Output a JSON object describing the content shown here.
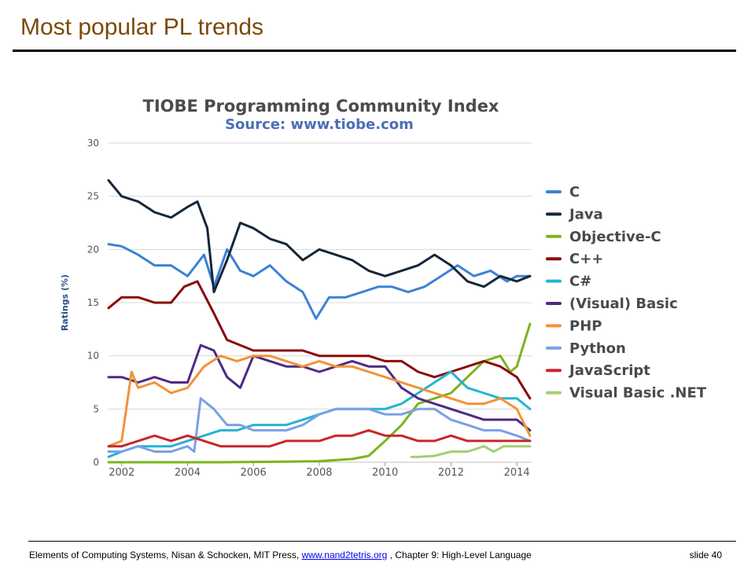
{
  "slide": {
    "title": "Most popular PL trends",
    "footer_prefix": "Elements of Computing Systems, Nisan & Schocken, MIT Press,",
    "footer_link": "www.nand2tetris.org",
    "footer_suffix": ", Chapter 9: High-Level Language",
    "slide_number": "slide 40"
  },
  "colors": {
    "title": "#7a4a0a"
  },
  "chart_data": {
    "type": "line",
    "title": "TIOBE Programming Community Index",
    "subtitle": "Source: www.tiobe.com",
    "ylabel": "Ratings (%)",
    "xlabel": "",
    "ylim": [
      0,
      30
    ],
    "xlim": [
      2001.6,
      2014.45
    ],
    "yticks": [
      "0",
      "5",
      "10",
      "15",
      "20",
      "25",
      "30"
    ],
    "xticks": [
      "2002",
      "2004",
      "2006",
      "2008",
      "2010",
      "2012",
      "2014"
    ],
    "grid": true,
    "legend_position": "right",
    "series": [
      {
        "name": "C",
        "color": "#3b82d6",
        "x": [
          2001.6,
          2002,
          2002.5,
          2003,
          2003.5,
          2004,
          2004.5,
          2004.8,
          2005.2,
          2005.6,
          2006,
          2006.5,
          2007,
          2007.5,
          2007.9,
          2008.3,
          2008.8,
          2009.3,
          2009.8,
          2010.2,
          2010.7,
          2011.2,
          2011.7,
          2012.2,
          2012.7,
          2013.2,
          2013.7,
          2014,
          2014.4
        ],
        "y": [
          20.5,
          20.3,
          19.5,
          18.5,
          18.5,
          17.5,
          19.5,
          16.5,
          20.0,
          18.0,
          17.5,
          18.5,
          17.0,
          16.0,
          13.5,
          15.5,
          15.5,
          16.0,
          16.5,
          16.5,
          16.0,
          16.5,
          17.5,
          18.5,
          17.5,
          18.0,
          17.0,
          17.5,
          17.5
        ]
      },
      {
        "name": "Java",
        "color": "#15263a",
        "x": [
          2001.6,
          2002,
          2002.5,
          2003,
          2003.5,
          2004,
          2004.3,
          2004.6,
          2004.8,
          2005.2,
          2005.6,
          2006,
          2006.5,
          2007,
          2007.5,
          2008,
          2008.5,
          2009,
          2009.5,
          2010,
          2010.5,
          2011,
          2011.5,
          2012,
          2012.5,
          2013,
          2013.5,
          2014,
          2014.4
        ],
        "y": [
          26.5,
          25.0,
          24.5,
          23.5,
          23.0,
          24.0,
          24.5,
          22.0,
          16.0,
          19.0,
          22.5,
          22.0,
          21.0,
          20.5,
          19.0,
          20.0,
          19.5,
          19.0,
          18.0,
          17.5,
          18.0,
          18.5,
          19.5,
          18.5,
          17.0,
          16.5,
          17.5,
          17.0,
          17.5
        ]
      },
      {
        "name": "Objective-C",
        "color": "#7ab51d",
        "x": [
          2001.6,
          2003,
          2005,
          2007,
          2008,
          2009,
          2009.5,
          2010,
          2010.5,
          2011,
          2011.5,
          2012,
          2012.5,
          2013,
          2013.5,
          2013.8,
          2014,
          2014.2,
          2014.4
        ],
        "y": [
          0.0,
          0.0,
          0.0,
          0.05,
          0.1,
          0.3,
          0.6,
          2.0,
          3.5,
          5.5,
          6.0,
          6.5,
          8.0,
          9.5,
          10.0,
          8.5,
          9.0,
          11.0,
          13.0
        ]
      },
      {
        "name": "C++",
        "color": "#8b0b0b",
        "x": [
          2001.6,
          2002,
          2002.5,
          2003,
          2003.5,
          2003.9,
          2004.3,
          2004.8,
          2005.2,
          2005.6,
          2006,
          2006.5,
          2007,
          2007.5,
          2008,
          2008.5,
          2009,
          2009.5,
          2010,
          2010.5,
          2011,
          2011.5,
          2012,
          2012.5,
          2013,
          2013.5,
          2014,
          2014.4
        ],
        "y": [
          14.5,
          15.5,
          15.5,
          15.0,
          15.0,
          16.5,
          17.0,
          14.0,
          11.5,
          11.0,
          10.5,
          10.5,
          10.5,
          10.5,
          10.0,
          10.0,
          10.0,
          10.0,
          9.5,
          9.5,
          8.5,
          8.0,
          8.5,
          9.0,
          9.5,
          9.0,
          8.0,
          6.0
        ]
      },
      {
        "name": "C#",
        "color": "#25b4d0",
        "x": [
          2001.6,
          2002,
          2002.5,
          2003,
          2003.5,
          2004,
          2004.5,
          2005,
          2005.5,
          2006,
          2006.5,
          2007,
          2007.5,
          2008,
          2008.5,
          2009,
          2009.5,
          2010,
          2010.5,
          2011,
          2011.5,
          2012,
          2012.5,
          2013,
          2013.5,
          2014,
          2014.4
        ],
        "y": [
          0.5,
          1.0,
          1.5,
          1.5,
          1.5,
          2.0,
          2.5,
          3.0,
          3.0,
          3.5,
          3.5,
          3.5,
          4.0,
          4.5,
          5.0,
          5.0,
          5.0,
          5.0,
          5.5,
          6.5,
          7.5,
          8.5,
          7.0,
          6.5,
          6.0,
          6.0,
          5.0
        ]
      },
      {
        "name": "(Visual) Basic",
        "color": "#4e2a84",
        "x": [
          2001.6,
          2002,
          2002.5,
          2003,
          2003.5,
          2004,
          2004.4,
          2004.8,
          2005.2,
          2005.6,
          2006,
          2006.5,
          2007,
          2007.5,
          2008,
          2008.5,
          2009,
          2009.5,
          2010,
          2010.5,
          2011,
          2011.5,
          2012,
          2012.5,
          2013,
          2013.5,
          2014,
          2014.4
        ],
        "y": [
          8.0,
          8.0,
          7.5,
          8.0,
          7.5,
          7.5,
          11.0,
          10.5,
          8.0,
          7.0,
          10.0,
          9.5,
          9.0,
          9.0,
          8.5,
          9.0,
          9.5,
          9.0,
          9.0,
          7.0,
          6.0,
          5.5,
          5.0,
          4.5,
          4.0,
          4.0,
          4.0,
          3.0
        ]
      },
      {
        "name": "PHP",
        "color": "#f39237",
        "x": [
          2001.6,
          2002,
          2002.3,
          2002.5,
          2003,
          2003.5,
          2004,
          2004.5,
          2005,
          2005.5,
          2006,
          2006.5,
          2007,
          2007.5,
          2008,
          2008.5,
          2009,
          2009.5,
          2010,
          2010.5,
          2011,
          2011.5,
          2012,
          2012.5,
          2013,
          2013.5,
          2014,
          2014.4
        ],
        "y": [
          1.5,
          2.0,
          8.5,
          7.0,
          7.5,
          6.5,
          7.0,
          9.0,
          10.0,
          9.5,
          10.0,
          10.0,
          9.5,
          9.0,
          9.5,
          9.0,
          9.0,
          8.5,
          8.0,
          7.5,
          7.0,
          6.5,
          6.0,
          5.5,
          5.5,
          6.0,
          5.0,
          2.5
        ]
      },
      {
        "name": "Python",
        "color": "#7aa0e6",
        "x": [
          2001.6,
          2002,
          2002.5,
          2003,
          2003.5,
          2004,
          2004.2,
          2004.4,
          2004.8,
          2005.2,
          2005.6,
          2006,
          2006.5,
          2007,
          2007.5,
          2008,
          2008.5,
          2009,
          2009.5,
          2010,
          2010.5,
          2011,
          2011.5,
          2012,
          2012.5,
          2013,
          2013.5,
          2014,
          2014.4
        ],
        "y": [
          1.0,
          1.0,
          1.5,
          1.0,
          1.0,
          1.5,
          1.0,
          6.0,
          5.0,
          3.5,
          3.5,
          3.0,
          3.0,
          3.0,
          3.5,
          4.5,
          5.0,
          5.0,
          5.0,
          4.5,
          4.5,
          5.0,
          5.0,
          4.0,
          3.5,
          3.0,
          3.0,
          2.5,
          2.0
        ]
      },
      {
        "name": "JavaScript",
        "color": "#c8262b",
        "x": [
          2001.6,
          2002,
          2002.5,
          2003,
          2003.5,
          2004,
          2004.5,
          2005,
          2005.5,
          2006,
          2006.5,
          2007,
          2007.5,
          2008,
          2008.5,
          2009,
          2009.5,
          2010,
          2010.5,
          2011,
          2011.5,
          2012,
          2012.5,
          2013,
          2013.5,
          2014,
          2014.4
        ],
        "y": [
          1.5,
          1.5,
          2.0,
          2.5,
          2.0,
          2.5,
          2.0,
          1.5,
          1.5,
          1.5,
          1.5,
          2.0,
          2.0,
          2.0,
          2.5,
          2.5,
          3.0,
          2.5,
          2.5,
          2.0,
          2.0,
          2.5,
          2.0,
          2.0,
          2.0,
          2.0,
          2.0
        ]
      },
      {
        "name": "Visual Basic .NET",
        "color": "#9fd175",
        "x": [
          2010.8,
          2011,
          2011.5,
          2012,
          2012.5,
          2013,
          2013.3,
          2013.6,
          2014,
          2014.4
        ],
        "y": [
          0.5,
          0.5,
          0.6,
          1.0,
          1.0,
          1.5,
          1.0,
          1.5,
          1.5,
          1.5
        ]
      }
    ]
  }
}
